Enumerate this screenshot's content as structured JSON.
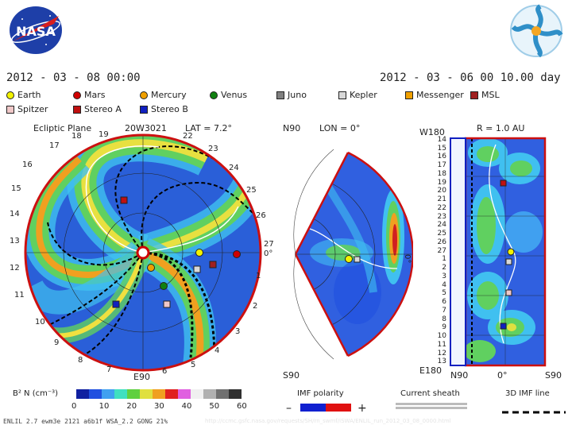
{
  "header": {
    "date_left": "2012 - 03 - 08  00:00",
    "date_right": "2012 - 03 - 06 00  10.00 day"
  },
  "legend": [
    {
      "name": "Earth",
      "color": "#f2f200",
      "shape": "circle"
    },
    {
      "name": "Mars",
      "color": "#d00000",
      "shape": "circle"
    },
    {
      "name": "Mercury",
      "color": "#f0a000",
      "shape": "circle"
    },
    {
      "name": "Venus",
      "color": "#108010",
      "shape": "circle"
    },
    {
      "name": "Juno",
      "color": "#808080",
      "shape": "square"
    },
    {
      "name": "Kepler",
      "color": "#d8d8d8",
      "shape": "square"
    },
    {
      "name": "Messenger",
      "color": "#f0a000",
      "shape": "square"
    },
    {
      "name": "MSL",
      "color": "#a02020",
      "shape": "square"
    },
    {
      "name": "Spitzer",
      "color": "#f0c8c8",
      "shape": "square"
    },
    {
      "name": "Stereo A",
      "color": "#c01010",
      "shape": "square"
    },
    {
      "name": "Stereo B",
      "color": "#1020c0",
      "shape": "square"
    }
  ],
  "panels": {
    "ecliptic": {
      "title": "Ecliptic Plane",
      "cr": "20W3021",
      "lat": "LAT =  7.2°",
      "ticks": [
        "19",
        "22",
        "23",
        "24",
        "25",
        "26",
        "27",
        "0°",
        "1",
        "2",
        "3",
        "4",
        "5",
        "6",
        "7",
        "8",
        "9",
        "10",
        "11",
        "12",
        "13",
        "14",
        "15",
        "16",
        "17",
        "18"
      ],
      "bottom": "E90"
    },
    "meridional": {
      "top": "N90",
      "lon": "LON =  0°",
      "bottom": "S90",
      "mid": "0°"
    },
    "radial": {
      "top_left": "W180",
      "r": "R =  1.0 AU",
      "bottom_left": "E180",
      "bottom_mid": "0°",
      "bottom_n": "N90",
      "bottom_s": "S90",
      "rows": [
        "14",
        "15",
        "16",
        "17",
        "18",
        "19",
        "20",
        "21",
        "22",
        "23",
        "24",
        "25",
        "26",
        "27",
        "1",
        "2",
        "3",
        "4",
        "5",
        "6",
        "7",
        "8",
        "9",
        "10",
        "11",
        "12",
        "13"
      ]
    }
  },
  "colorbar": {
    "label": "B² N (cm⁻³)",
    "ticks": [
      "0",
      "10",
      "20",
      "30",
      "40",
      "50",
      "60"
    ],
    "colors": [
      "#1020a0",
      "#2050e0",
      "#40a0f0",
      "#40e0c0",
      "#60d040",
      "#e0e040",
      "#f0a020",
      "#e02020",
      "#e060e0",
      "#f0f0f0",
      "#b0b0b0",
      "#707070",
      "#303030"
    ]
  },
  "imf": {
    "title": "IMF polarity",
    "minus": "–",
    "plus": "+"
  },
  "sheath": {
    "title": "Current sheath"
  },
  "imfline": {
    "title": "3D IMF line"
  },
  "footer": {
    "text": "ENLIL 2.7 ewm3e 2121  a6b1f WSA_2.2 GONG  21%",
    "faint": "http://ccmc.gsfc.nasa.gov/requests/SH/rn_swmf/iSWA/ENLIL_run_2012_03_08_0000.html"
  }
}
